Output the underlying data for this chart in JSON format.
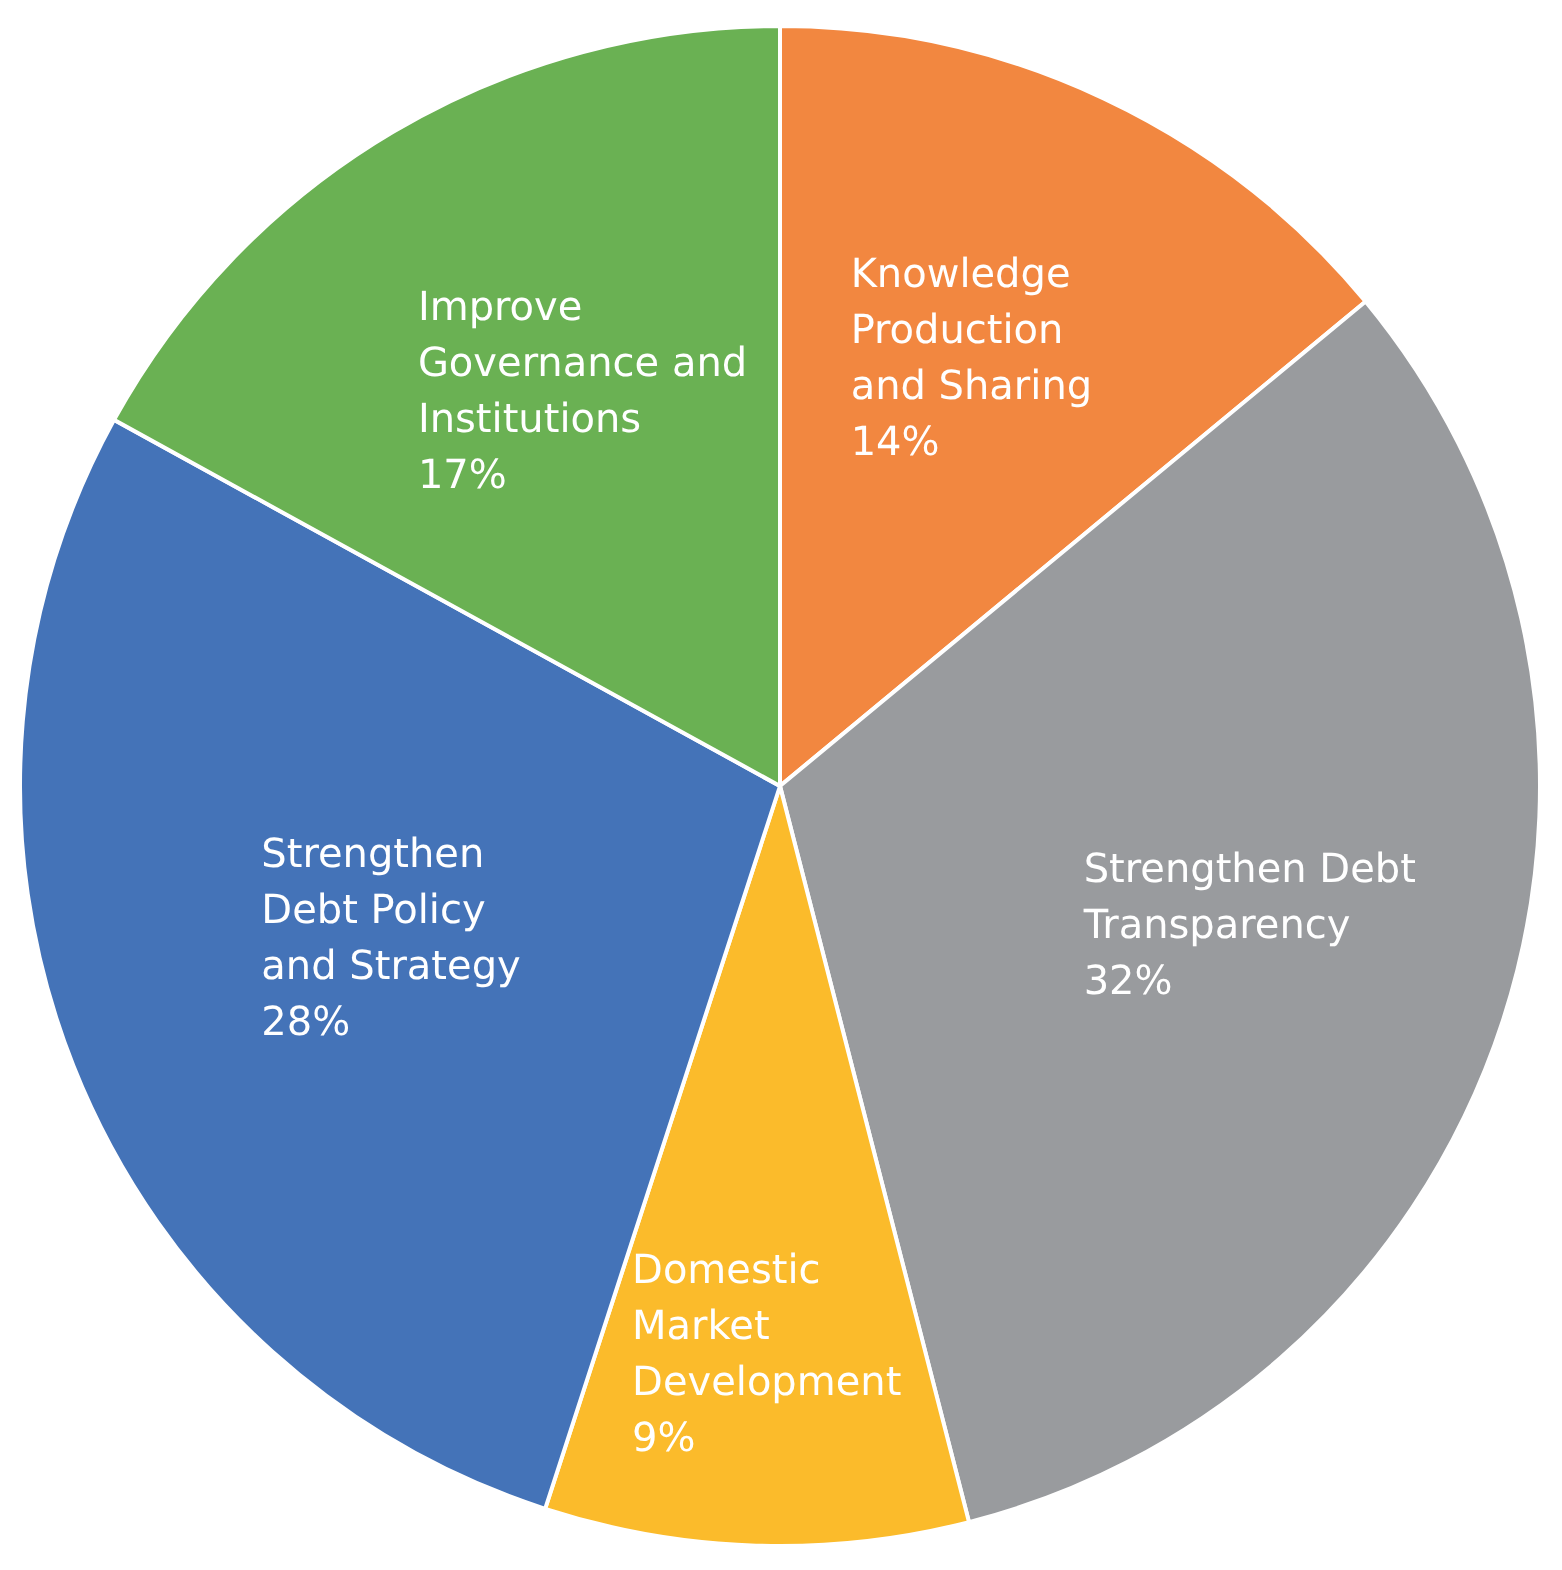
{
  "chart_data": {
    "type": "pie",
    "categories": [
      "Knowledge Production and Sharing",
      "Strengthen Debt Transparency",
      "Domestic Market Development",
      "Strengthen Debt Policy and Strategy",
      "Improve Governance and Institutions"
    ],
    "values": [
      14,
      32,
      9,
      28,
      17
    ],
    "value_labels": [
      "14%",
      "32%",
      "9%",
      "28%",
      "17%"
    ],
    "colors": [
      "#f28740",
      "#999b9e",
      "#fbbb2b",
      "#4473b8",
      "#6ab153"
    ],
    "legend": false
  }
}
